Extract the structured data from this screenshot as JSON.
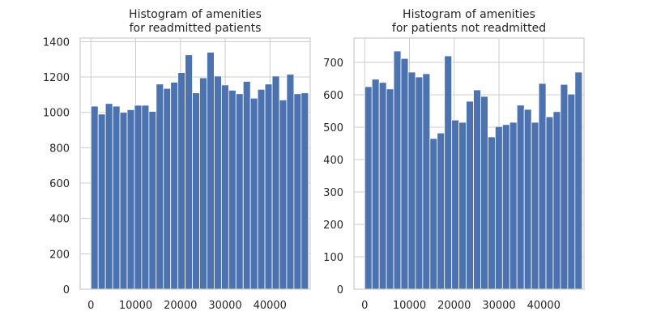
{
  "chart_data": [
    {
      "type": "bar",
      "title_line1": "Histogram of amenities",
      "title_line2": "for readmitted patients",
      "xlabel": "",
      "ylabel": "",
      "bin_start": 0,
      "bin_width": 1620,
      "values": [
        1035,
        990,
        1050,
        1035,
        1000,
        1015,
        1040,
        1040,
        1005,
        1160,
        1135,
        1170,
        1225,
        1325,
        1110,
        1195,
        1340,
        1205,
        1155,
        1125,
        1105,
        1175,
        1080,
        1130,
        1160,
        1205,
        1070,
        1215,
        1105,
        1110
      ],
      "xlim": [
        -2400,
        49000
      ],
      "ylim": [
        0,
        1420
      ],
      "xticks": [
        0,
        10000,
        20000,
        30000,
        40000
      ],
      "yticks": [
        0,
        200,
        400,
        600,
        800,
        1000,
        1200,
        1400
      ],
      "grid": true,
      "bar_color": "#4c72b0"
    },
    {
      "type": "bar",
      "title_line1": "Histogram of amenities",
      "title_line2": "for patients not readmitted",
      "xlabel": "",
      "ylabel": "",
      "bin_start": 0,
      "bin_width": 1620,
      "values": [
        625,
        648,
        638,
        618,
        735,
        712,
        670,
        655,
        665,
        465,
        482,
        720,
        522,
        515,
        580,
        615,
        595,
        470,
        502,
        508,
        515,
        568,
        555,
        515,
        635,
        532,
        548,
        632,
        602,
        670
      ],
      "xlim": [
        -2400,
        49000
      ],
      "ylim": [
        0,
        775
      ],
      "xticks": [
        0,
        10000,
        20000,
        30000,
        40000
      ],
      "yticks": [
        0,
        100,
        200,
        300,
        400,
        500,
        600,
        700
      ],
      "grid": true,
      "bar_color": "#4c72b0"
    }
  ]
}
